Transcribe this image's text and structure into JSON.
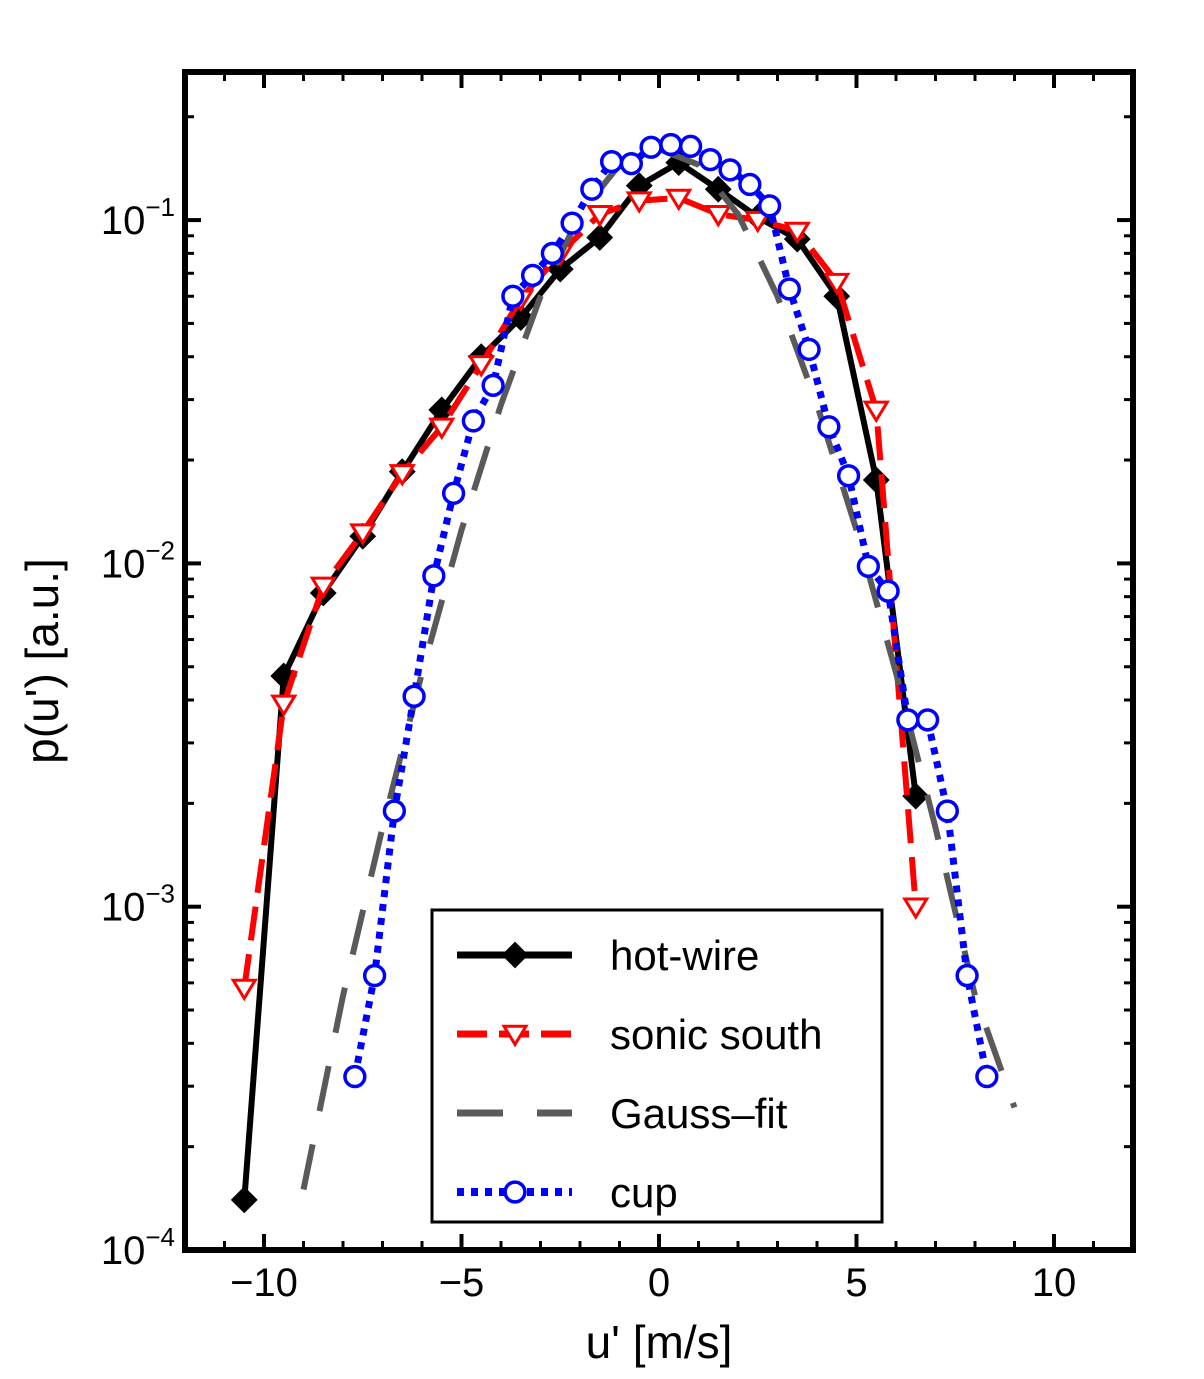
{
  "chart_data": {
    "type": "line",
    "title": "",
    "xlabel": "u' [m/s]",
    "ylabel": "p(u') [a.u.]",
    "xscale": "linear",
    "yscale": "log",
    "xlim": [
      -12,
      12
    ],
    "ylim": [
      0.0001,
      0.27
    ],
    "x_ticks": [
      {
        "value": -10,
        "label": "−10"
      },
      {
        "value": -5,
        "label": "−5"
      },
      {
        "value": 0,
        "label": "0"
      },
      {
        "value": 5,
        "label": "5"
      },
      {
        "value": 10,
        "label": "10"
      }
    ],
    "y_ticks": [
      {
        "value": 0.1,
        "base": "10",
        "exp": "−1"
      },
      {
        "value": 0.01,
        "base": "10",
        "exp": "−2"
      },
      {
        "value": 0.001,
        "base": "10",
        "exp": "−3"
      },
      {
        "value": 0.0001,
        "base": "10",
        "exp": "−4"
      }
    ],
    "grid": false,
    "legend_position": "bottom-center",
    "series": [
      {
        "name": "hot-wire",
        "color": "#000000",
        "line_style": "solid",
        "marker": "diamond",
        "x": [
          -10.5,
          -9.5,
          -8.5,
          -7.5,
          -6.5,
          -5.5,
          -4.5,
          -3.5,
          -2.5,
          -1.5,
          -0.5,
          0.5,
          1.5,
          2.5,
          3.5,
          4.5,
          5.5,
          6.5
        ],
        "y": [
          0.00014,
          0.0047,
          0.0082,
          0.012,
          0.0185,
          0.028,
          0.04,
          0.052,
          0.072,
          0.089,
          0.126,
          0.147,
          0.123,
          0.102,
          0.088,
          0.06,
          0.0175,
          0.0021
        ]
      },
      {
        "name": "sonic south",
        "color": "#ff0000",
        "line_style": "dashed",
        "marker": "triangle-down-open",
        "x": [
          -10.5,
          -9.5,
          -8.5,
          -7.5,
          -6.5,
          -5.5,
          -4.5,
          -3.5,
          -2.5,
          -1.5,
          -0.5,
          0.5,
          1.5,
          2.5,
          3.5,
          4.5,
          5.5,
          6.5
        ],
        "y": [
          0.00058,
          0.0039,
          0.0086,
          0.0123,
          0.0183,
          0.025,
          0.038,
          0.059,
          0.08,
          0.104,
          0.114,
          0.116,
          0.104,
          0.1,
          0.093,
          0.066,
          0.028,
          0.001
        ]
      },
      {
        "name": "Gauss–fit",
        "color": "#5a5a5a",
        "line_style": "long-dash",
        "marker": "none",
        "x": [
          -9,
          -8,
          -7,
          -6,
          -5,
          -4,
          -3,
          -2,
          -1,
          0,
          1,
          2,
          3,
          4,
          5,
          6,
          7,
          8,
          9
        ],
        "y": [
          0.00015,
          0.00055,
          0.0017,
          0.0048,
          0.0125,
          0.029,
          0.06,
          0.104,
          0.145,
          0.161,
          0.145,
          0.104,
          0.06,
          0.029,
          0.0125,
          0.0048,
          0.0017,
          0.00055,
          0.00026
        ]
      },
      {
        "name": "cup",
        "color": "#0000ff",
        "line_style": "dotted",
        "marker": "circle-open",
        "x": [
          -7.7,
          -7.2,
          -6.7,
          -6.2,
          -5.7,
          -5.2,
          -4.7,
          -4.2,
          -3.7,
          -3.2,
          -2.7,
          -2.2,
          -1.7,
          -1.2,
          -0.7,
          -0.2,
          0.3,
          0.8,
          1.3,
          1.8,
          2.3,
          2.8,
          3.3,
          3.8,
          4.3,
          4.8,
          5.3,
          5.8,
          6.3,
          6.8,
          7.3,
          7.8,
          8.3
        ],
        "y": [
          0.00032,
          0.00063,
          0.0019,
          0.0041,
          0.0092,
          0.016,
          0.026,
          0.033,
          0.06,
          0.069,
          0.08,
          0.098,
          0.123,
          0.148,
          0.146,
          0.163,
          0.166,
          0.164,
          0.15,
          0.14,
          0.127,
          0.11,
          0.063,
          0.042,
          0.025,
          0.018,
          0.0098,
          0.0083,
          0.0035,
          0.0035,
          0.0019,
          0.00063,
          0.00032
        ]
      }
    ]
  }
}
